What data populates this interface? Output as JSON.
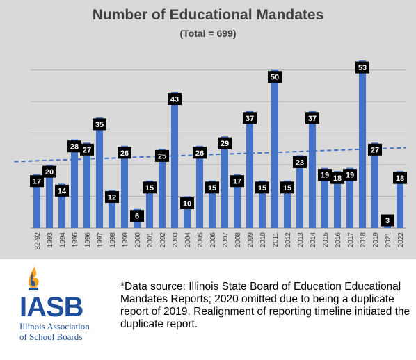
{
  "chart_data": {
    "type": "bar",
    "title": "Number of Educational Mandates",
    "subtitle": "(Total = 699)",
    "categories": [
      "82-92",
      "1993",
      "1994",
      "1995",
      "1996",
      "1997",
      "1998",
      "1999",
      "2000",
      "2001",
      "2002",
      "2003",
      "2004",
      "2005",
      "2006",
      "2007",
      "2008",
      "2009",
      "2010",
      "2011",
      "2012",
      "2013",
      "2014",
      "2015",
      "2016",
      "2017",
      "2018",
      "2019",
      "2021",
      "2022"
    ],
    "values": [
      17,
      20,
      14,
      28,
      27,
      35,
      12,
      26,
      6,
      15,
      25,
      43,
      10,
      26,
      15,
      29,
      17,
      37,
      15,
      50,
      15,
      23,
      37,
      19,
      18,
      19,
      53,
      27,
      3,
      18
    ],
    "ylim": [
      0,
      55
    ],
    "grid": true,
    "trendline": "linear dashed",
    "bar_color": "#4472c4",
    "trend_color": "#4472c4",
    "label_bg": "#000000",
    "label_fg": "#ffffff"
  },
  "logo": {
    "acronym": "IASB",
    "line1": "Illinois Association",
    "line2": "of School Boards",
    "blue": "#1f4e9c",
    "gold": "#f5a623"
  },
  "footnote": "*Data source: Illinois State Board of Education Educational Mandates Reports; 2020 omitted due to being a duplicate report of 2019. Realignment of reporting timeline initiated the duplicate report."
}
